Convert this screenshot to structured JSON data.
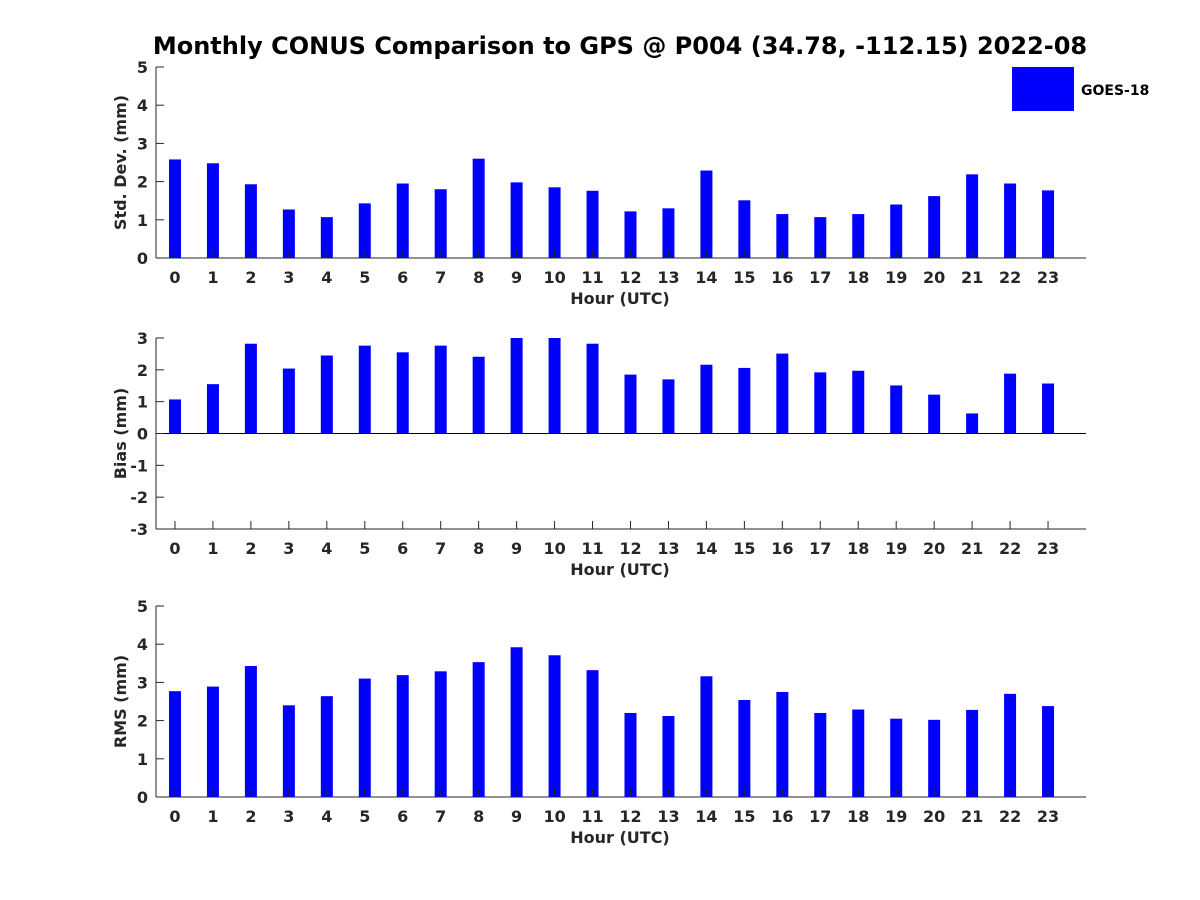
{
  "title": "Monthly CONUS Comparison to GPS @ P004 (34.78, -112.15) 2022-08",
  "legend": {
    "label": "GOES-18",
    "color": "#0000ff"
  },
  "chart_data": [
    {
      "type": "bar",
      "title": "Monthly CONUS Comparison to GPS @ P004 (34.78, -112.15) 2022-08",
      "xlabel": "Hour (UTC)",
      "ylabel": "Std. Dev. (mm)",
      "ylim": [
        0,
        5
      ],
      "yticks": [
        0,
        1,
        2,
        3,
        4,
        5
      ],
      "categories": [
        "0",
        "1",
        "2",
        "3",
        "4",
        "5",
        "6",
        "7",
        "8",
        "9",
        "10",
        "11",
        "12",
        "13",
        "14",
        "15",
        "16",
        "17",
        "18",
        "19",
        "20",
        "21",
        "22",
        "23"
      ],
      "series": [
        {
          "name": "GOES-18",
          "color": "#0000ff",
          "values": [
            2.58,
            2.48,
            1.93,
            1.27,
            1.07,
            1.43,
            1.95,
            1.8,
            2.6,
            1.98,
            1.85,
            1.76,
            1.22,
            1.3,
            2.29,
            1.51,
            1.15,
            1.07,
            1.15,
            1.4,
            1.62,
            2.19,
            1.95,
            1.77
          ]
        }
      ],
      "legend": "top-right",
      "grid": false
    },
    {
      "type": "bar",
      "xlabel": "Hour (UTC)",
      "ylabel": "Bias (mm)",
      "ylim": [
        -3,
        3
      ],
      "yticks": [
        -3,
        -2,
        -1,
        0,
        1,
        2,
        3
      ],
      "categories": [
        "0",
        "1",
        "2",
        "3",
        "4",
        "5",
        "6",
        "7",
        "8",
        "9",
        "10",
        "11",
        "12",
        "13",
        "14",
        "15",
        "16",
        "17",
        "18",
        "19",
        "20",
        "21",
        "22",
        "23"
      ],
      "series": [
        {
          "name": "GOES-18",
          "color": "#0000ff",
          "values": [
            1.07,
            1.55,
            2.82,
            2.04,
            2.45,
            2.76,
            2.55,
            2.76,
            2.41,
            3.0,
            3.0,
            2.82,
            1.85,
            1.7,
            2.16,
            2.06,
            2.51,
            1.92,
            1.97,
            1.51,
            1.22,
            0.63,
            1.88,
            1.57
          ]
        }
      ],
      "grid": false
    },
    {
      "type": "bar",
      "xlabel": "Hour (UTC)",
      "ylabel": "RMS (mm)",
      "ylim": [
        0,
        5
      ],
      "yticks": [
        0,
        1,
        2,
        3,
        4,
        5
      ],
      "categories": [
        "0",
        "1",
        "2",
        "3",
        "4",
        "5",
        "6",
        "7",
        "8",
        "9",
        "10",
        "11",
        "12",
        "13",
        "14",
        "15",
        "16",
        "17",
        "18",
        "19",
        "20",
        "21",
        "22",
        "23"
      ],
      "series": [
        {
          "name": "GOES-18",
          "color": "#0000ff",
          "values": [
            2.77,
            2.89,
            3.43,
            2.4,
            2.64,
            3.1,
            3.19,
            3.29,
            3.53,
            3.92,
            3.71,
            3.32,
            2.2,
            2.12,
            3.16,
            2.54,
            2.75,
            2.2,
            2.29,
            2.05,
            2.02,
            2.28,
            2.7,
            2.38
          ]
        }
      ],
      "grid": false
    }
  ]
}
